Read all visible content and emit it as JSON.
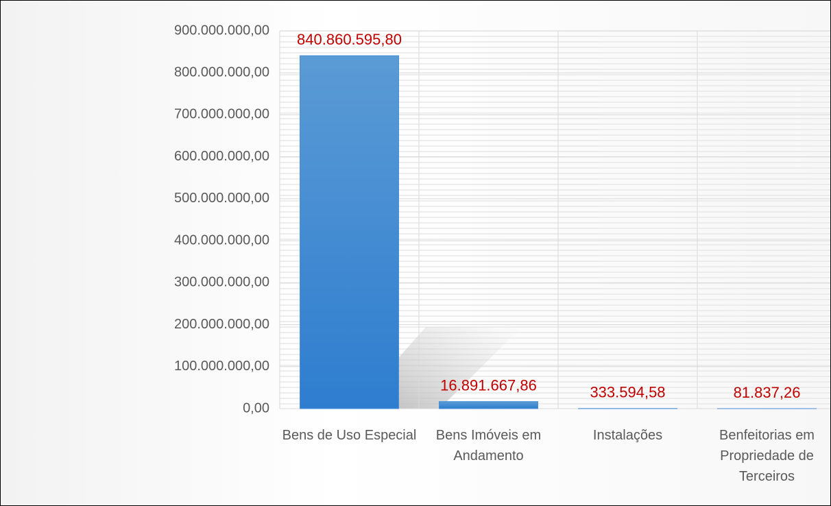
{
  "chart_data": {
    "type": "bar",
    "categories": [
      "Bens de Uso Especial",
      "Bens Imóveis em Andamento",
      "Instalações",
      "Benfeitorias em Propriedade de Terceiros"
    ],
    "values": [
      840860595.8,
      16891667.86,
      333594.58,
      81837.26
    ],
    "value_labels": [
      "840.860.595,80",
      "16.891.667,86",
      "333.594,58",
      "81.837,26"
    ],
    "color": "#4a90d9",
    "ylim": [
      0,
      900000000
    ],
    "yticks": [
      {
        "value": 0,
        "label": "0,00"
      },
      {
        "value": 100000000,
        "label": "100.000.000,00"
      },
      {
        "value": 200000000,
        "label": "200.000.000,00"
      },
      {
        "value": 300000000,
        "label": "300.000.000,00"
      },
      {
        "value": 400000000,
        "label": "400.000.000,00"
      },
      {
        "value": 500000000,
        "label": "500.000.000,00"
      },
      {
        "value": 600000000,
        "label": "600.000.000,00"
      },
      {
        "value": 700000000,
        "label": "700.000.000,00"
      },
      {
        "value": 800000000,
        "label": "800.000.000,00"
      },
      {
        "value": 900000000,
        "label": "900.000.000,00"
      }
    ],
    "grid": true
  }
}
